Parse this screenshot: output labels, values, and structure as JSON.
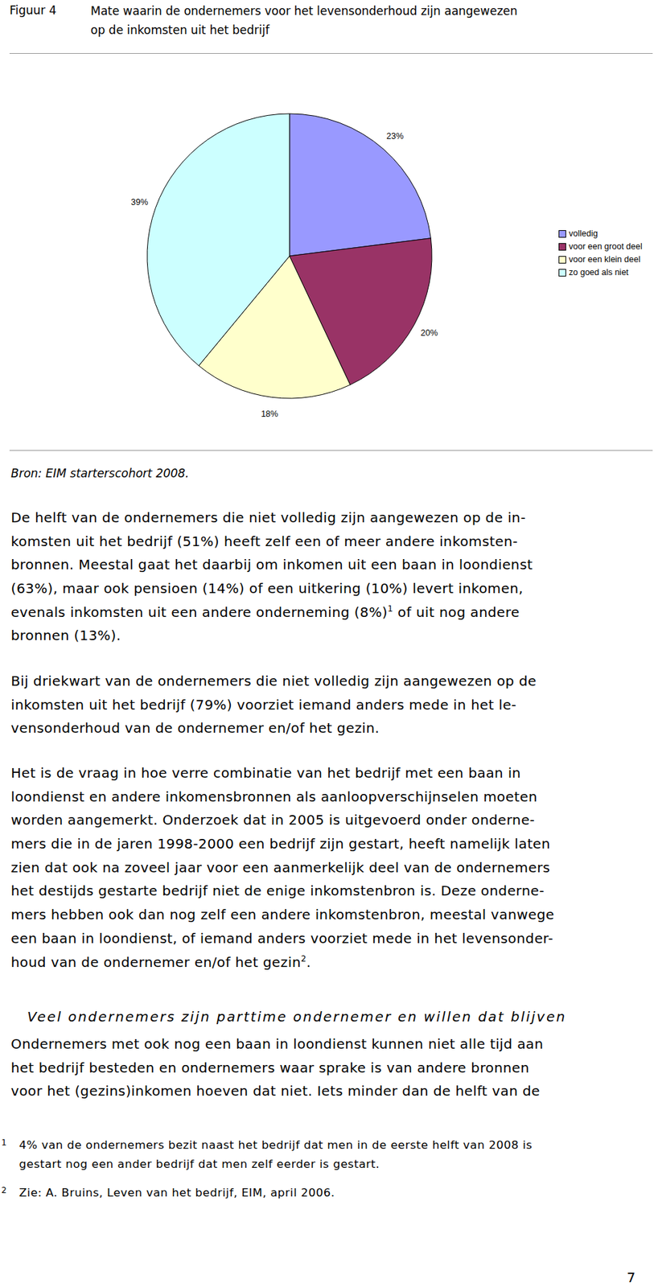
{
  "header": {
    "label": "Figuur 4",
    "title_lines": [
      "Mate waarin de ondernemers voor het levensonderhoud zijn aangewezen",
      "op de inkomsten uit het bedrijf"
    ]
  },
  "chart_data": {
    "type": "pie",
    "categories": [
      "volledig",
      "voor een groot deel",
      "voor een klein deel",
      "zo goed als niet"
    ],
    "values": [
      23,
      20,
      18,
      39
    ],
    "value_labels": [
      "23%",
      "20%",
      "18%",
      "39%"
    ],
    "colors": [
      "#9999ff",
      "#993366",
      "#ffffcc",
      "#ccffff"
    ],
    "data_labels": true,
    "legend": "right"
  },
  "source": "Bron: EIM starterscohort 2008.",
  "paragraphs": [
    [
      "De helft van de ondernemers die niet volledig zijn aangewezen op de in-",
      "komsten uit het bedrijf (51%) heeft zelf een of meer andere inkomsten-",
      "bronnen. Meestal gaat het daarbij om inkomen uit een baan in loondienst",
      "(63%), maar ook pensioen (14%) of een uitkering (10%) levert inkomen,",
      [
        "evenals inkomsten uit een andere onderneming (8%)",
        {
          "sup": "1"
        },
        " of uit nog andere"
      ],
      "bronnen (13%)."
    ],
    [
      "Bij driekwart van de ondernemers die niet volledig zijn aangewezen op de",
      "inkomsten uit het bedrijf (79%) voorziet iemand anders mede in het le-",
      "vensonderhoud van de ondernemer en/of het gezin."
    ],
    [
      "Het is de vraag in hoe verre combinatie van het bedrijf met een baan in",
      "loondienst en andere inkomensbronnen als aanloopverschijnselen moeten",
      "worden aangemerkt. Onderzoek dat in 2005 is uitgevoerd onder onderne-",
      "mers die in de jaren 1998-2000 een bedrijf zijn gestart, heeft namelijk laten",
      "zien dat ook na zoveel jaar voor een aanmerkelijk deel van de ondernemers",
      "het destijds gestarte bedrijf niet de enige inkomstenbron is. Deze onderne-",
      "mers hebben ook dan nog zelf een andere inkomstenbron, meestal vanwege",
      "een baan in loondienst, of iemand anders voorziet mede in het levensonder-",
      [
        "houd van de ondernemer en/of het gezin",
        {
          "sup": "2"
        },
        "."
      ]
    ]
  ],
  "section_heading": "Veel ondernemers zijn parttime ondernemer en willen dat blijven",
  "paragraph_after_heading": [
    "Ondernemers met ook nog een baan in loondienst kunnen niet alle tijd aan",
    "het bedrijf besteden en ondernemers waar sprake is van andere bronnen",
    "voor het (gezins)inkomen hoeven dat niet. Iets minder dan de helft van de"
  ],
  "footnotes": [
    {
      "marker": "1",
      "lines": [
        "4% van de ondernemers bezit naast het bedrijf dat men in de eerste helft van 2008 is",
        "gestart nog een ander bedrijf dat men zelf eerder is gestart."
      ]
    },
    {
      "marker": "2",
      "lines": [
        "Zie: A. Bruins, Leven van het bedrijf, EIM, april 2006."
      ]
    }
  ],
  "page_number": "7"
}
